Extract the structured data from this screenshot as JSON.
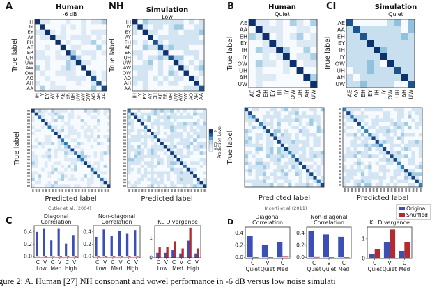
{
  "figure": {
    "panel_letters": {
      "A": "A",
      "NH": "NH",
      "B": "B",
      "CI": "CI",
      "C": "C",
      "D": "D"
    },
    "caption_fragment": "gure 2: A. Human [27] NH consonant and vowel performance in -6 dB versus low noise simulati",
    "colorbar": {
      "label": "Prediction Level",
      "tick_min": "0.05",
      "tick_max": ".9"
    },
    "legend": {
      "items": [
        {
          "name": "Original",
          "color": "#3b4fb5"
        },
        {
          "name": "Shuffled",
          "color": "#b52a30"
        }
      ],
      "placement": "top-right of panel D"
    },
    "colors": {
      "cmap_low": "#f4f9fe",
      "cmap_high": "#0b2560",
      "frame": "#333333"
    }
  },
  "chart_data": [
    {
      "type": "heatmap",
      "id": "A-human-vowel",
      "title": "Human",
      "subtitle": "-6 dB",
      "ylabel": "True label",
      "xlabel": "",
      "labels": [
        "IH",
        "IY",
        "EY",
        "AY",
        "EH",
        "AE",
        "ER",
        "UH",
        "UW",
        "AW",
        "OW",
        "AO",
        "AH",
        "AA"
      ],
      "diagonal": [
        0.95,
        0.95,
        0.95,
        0.95,
        0.95,
        0.95,
        0.95,
        0.75,
        0.95,
        0.95,
        0.95,
        0.8,
        0.8,
        0.85
      ],
      "off_diagonal_level": "sparse-low"
    },
    {
      "type": "heatmap",
      "id": "A-sim-vowel",
      "title": "Simulation",
      "subtitle": "Low",
      "ylabel": "True label",
      "xlabel": "",
      "labels": [
        "IH",
        "IY",
        "EY",
        "AY",
        "EH",
        "AE",
        "ER",
        "UH",
        "UW",
        "AW",
        "OW",
        "AO",
        "AH",
        "AA"
      ],
      "diagonal": [
        0.95,
        0.95,
        0.95,
        0.95,
        0.8,
        0.8,
        0.95,
        0.8,
        0.95,
        0.95,
        0.95,
        0.95,
        0.95,
        0.8
      ],
      "off_diagonal_level": "moderate"
    },
    {
      "type": "heatmap",
      "id": "A-human-consonant",
      "title": "",
      "ylabel": "True label",
      "xlabel": "Predicted label",
      "citation": "Cutler et al. (2004)",
      "n": 24,
      "diagonal_level": 0.9,
      "off_diagonal_level": "sparse-low"
    },
    {
      "type": "heatmap",
      "id": "A-sim-consonant",
      "title": "",
      "ylabel": "",
      "xlabel": "Predicted label",
      "n": 24,
      "diagonal_level": 0.9,
      "off_diagonal_level": "moderate"
    },
    {
      "type": "heatmap",
      "id": "B-human-vowel",
      "title": "Human",
      "subtitle": "Quiet",
      "ylabel": "True label",
      "xlabel": "",
      "labels": [
        "AE",
        "AA",
        "EH",
        "EY",
        "IH",
        "IY",
        "OW",
        "UH",
        "AH",
        "UW"
      ],
      "diagonal": [
        0.95,
        0.95,
        0.95,
        0.95,
        0.95,
        0.95,
        0.95,
        0.95,
        0.95,
        0.95
      ],
      "off_diagonal_level": "sparse-low"
    },
    {
      "type": "heatmap",
      "id": "CI-sim-vowel",
      "title": "Simulation",
      "subtitle": "Quiet",
      "ylabel": "True label",
      "xlabel": "",
      "labels": [
        "AE",
        "AA",
        "EH",
        "EY",
        "IH",
        "IY",
        "OW",
        "UH",
        "AH",
        "UW"
      ],
      "diagonal": [
        0.8,
        0.8,
        0.8,
        0.95,
        0.95,
        0.95,
        0.95,
        0.8,
        0.95,
        0.8
      ],
      "off_diagonal_level": "high"
    },
    {
      "type": "heatmap",
      "id": "B-human-consonant",
      "title": "",
      "ylabel": "True label",
      "xlabel": "Predicted label",
      "citation": "Incerti et al (2011)",
      "labels": [
        "B",
        "CH",
        "D",
        "DH",
        "F",
        "G",
        "K",
        "L",
        "M",
        "N",
        "NG",
        "P",
        "R",
        "S",
        "SH",
        "T",
        "TH",
        "V",
        "W",
        "Y",
        "Z",
        "ZH"
      ],
      "n": 22,
      "diagonal_level": 0.85,
      "off_diagonal_level": "moderate"
    },
    {
      "type": "heatmap",
      "id": "CI-sim-consonant",
      "title": "",
      "ylabel": "",
      "xlabel": "Predicted label",
      "n": 22,
      "diagonal_level": 0.85,
      "off_diagonal_level": "moderate"
    },
    {
      "type": "bar",
      "id": "C-diag",
      "title": "Diagonal Correlation",
      "categories": [
        "C",
        "V",
        "C",
        "V",
        "C",
        "V"
      ],
      "groups": [
        "Low",
        "Med",
        "High"
      ],
      "series": [
        {
          "name": "Original",
          "values": [
            0.4,
            0.46,
            0.26,
            0.46,
            0.21,
            0.35
          ]
        },
        {
          "name": "Shuffled",
          "values": [
            0.01,
            -0.01,
            0.005,
            -0.01,
            -0.005,
            -0.01
          ]
        }
      ],
      "ylim": [
        -0.02,
        0.5
      ],
      "yticks": [
        "0.0",
        "0.2",
        "0.4"
      ],
      "ytick_values": [
        0,
        0.2,
        0.4
      ]
    },
    {
      "type": "bar",
      "id": "C-nondiag",
      "title": "Non-diagonal Correlation",
      "categories": [
        "C",
        "V",
        "C",
        "V",
        "C",
        "V"
      ],
      "groups": [
        "Low",
        "Med",
        "High"
      ],
      "series": [
        {
          "name": "Original",
          "values": [
            0.32,
            0.44,
            0.33,
            0.41,
            0.37,
            0.43
          ]
        },
        {
          "name": "Shuffled",
          "values": [
            0.0,
            0.0,
            0.0,
            0.0,
            0.0,
            0.005
          ]
        }
      ],
      "ylim": [
        -0.02,
        0.5
      ],
      "yticks": [
        "0.0",
        "0.2",
        "0.4"
      ],
      "ytick_values": [
        0,
        0.2,
        0.4
      ]
    },
    {
      "type": "bar",
      "id": "C-kl",
      "title": "KL Divergence",
      "categories": [
        "C",
        "V",
        "C",
        "V",
        "C",
        "V"
      ],
      "groups": [
        "Low",
        "Med",
        "High"
      ],
      "series": [
        {
          "name": "Original",
          "values": [
            0.25,
            0.25,
            0.38,
            0.22,
            0.85,
            0.22
          ]
        },
        {
          "name": "Shuffled",
          "values": [
            0.52,
            0.53,
            0.82,
            0.47,
            1.5,
            0.47
          ]
        }
      ],
      "ylim": [
        0,
        1.6
      ],
      "yticks": [
        "0",
        "1"
      ],
      "ytick_values": [
        0,
        1
      ]
    },
    {
      "type": "bar",
      "id": "D-diag",
      "title": "Diagonal Correlation",
      "categories": [
        "C",
        "V",
        "C"
      ],
      "groups": [
        "Quiet",
        "Quiet",
        "Med"
      ],
      "series": [
        {
          "name": "Original",
          "values": [
            0.35,
            0.2,
            0.25
          ]
        },
        {
          "name": "Shuffled",
          "values": [
            -0.01,
            -0.01,
            0.01
          ]
        }
      ],
      "ylim": [
        -0.02,
        0.5
      ],
      "yticks": [
        "0.0",
        "0.2",
        "0.4"
      ],
      "ytick_values": [
        0,
        0.2,
        0.4
      ]
    },
    {
      "type": "bar",
      "id": "D-nondiag",
      "title": "Non-diagonal Correlation",
      "categories": [
        "C",
        "V",
        "C"
      ],
      "groups": [
        "Quiet",
        "Quiet",
        "Med"
      ],
      "series": [
        {
          "name": "Original",
          "values": [
            0.44,
            0.38,
            0.34
          ]
        },
        {
          "name": "Shuffled",
          "values": [
            0.005,
            0.0,
            0.0
          ]
        }
      ],
      "ylim": [
        -0.02,
        0.5
      ],
      "yticks": [
        "0.0",
        "0.2",
        "0.4"
      ],
      "ytick_values": [
        0,
        0.2,
        0.4
      ]
    },
    {
      "type": "bar",
      "id": "D-kl",
      "title": "KL Divergence",
      "categories": [
        "C",
        "V",
        "C"
      ],
      "groups": [
        "Quiet",
        "Quiet",
        "Med"
      ],
      "series": [
        {
          "name": "Original",
          "values": [
            0.22,
            0.85,
            0.38
          ]
        },
        {
          "name": "Shuffled",
          "values": [
            0.48,
            1.48,
            0.82
          ]
        }
      ],
      "ylim": [
        0,
        1.6
      ],
      "yticks": [
        "0",
        "1"
      ],
      "ytick_values": [
        0,
        1
      ]
    }
  ]
}
